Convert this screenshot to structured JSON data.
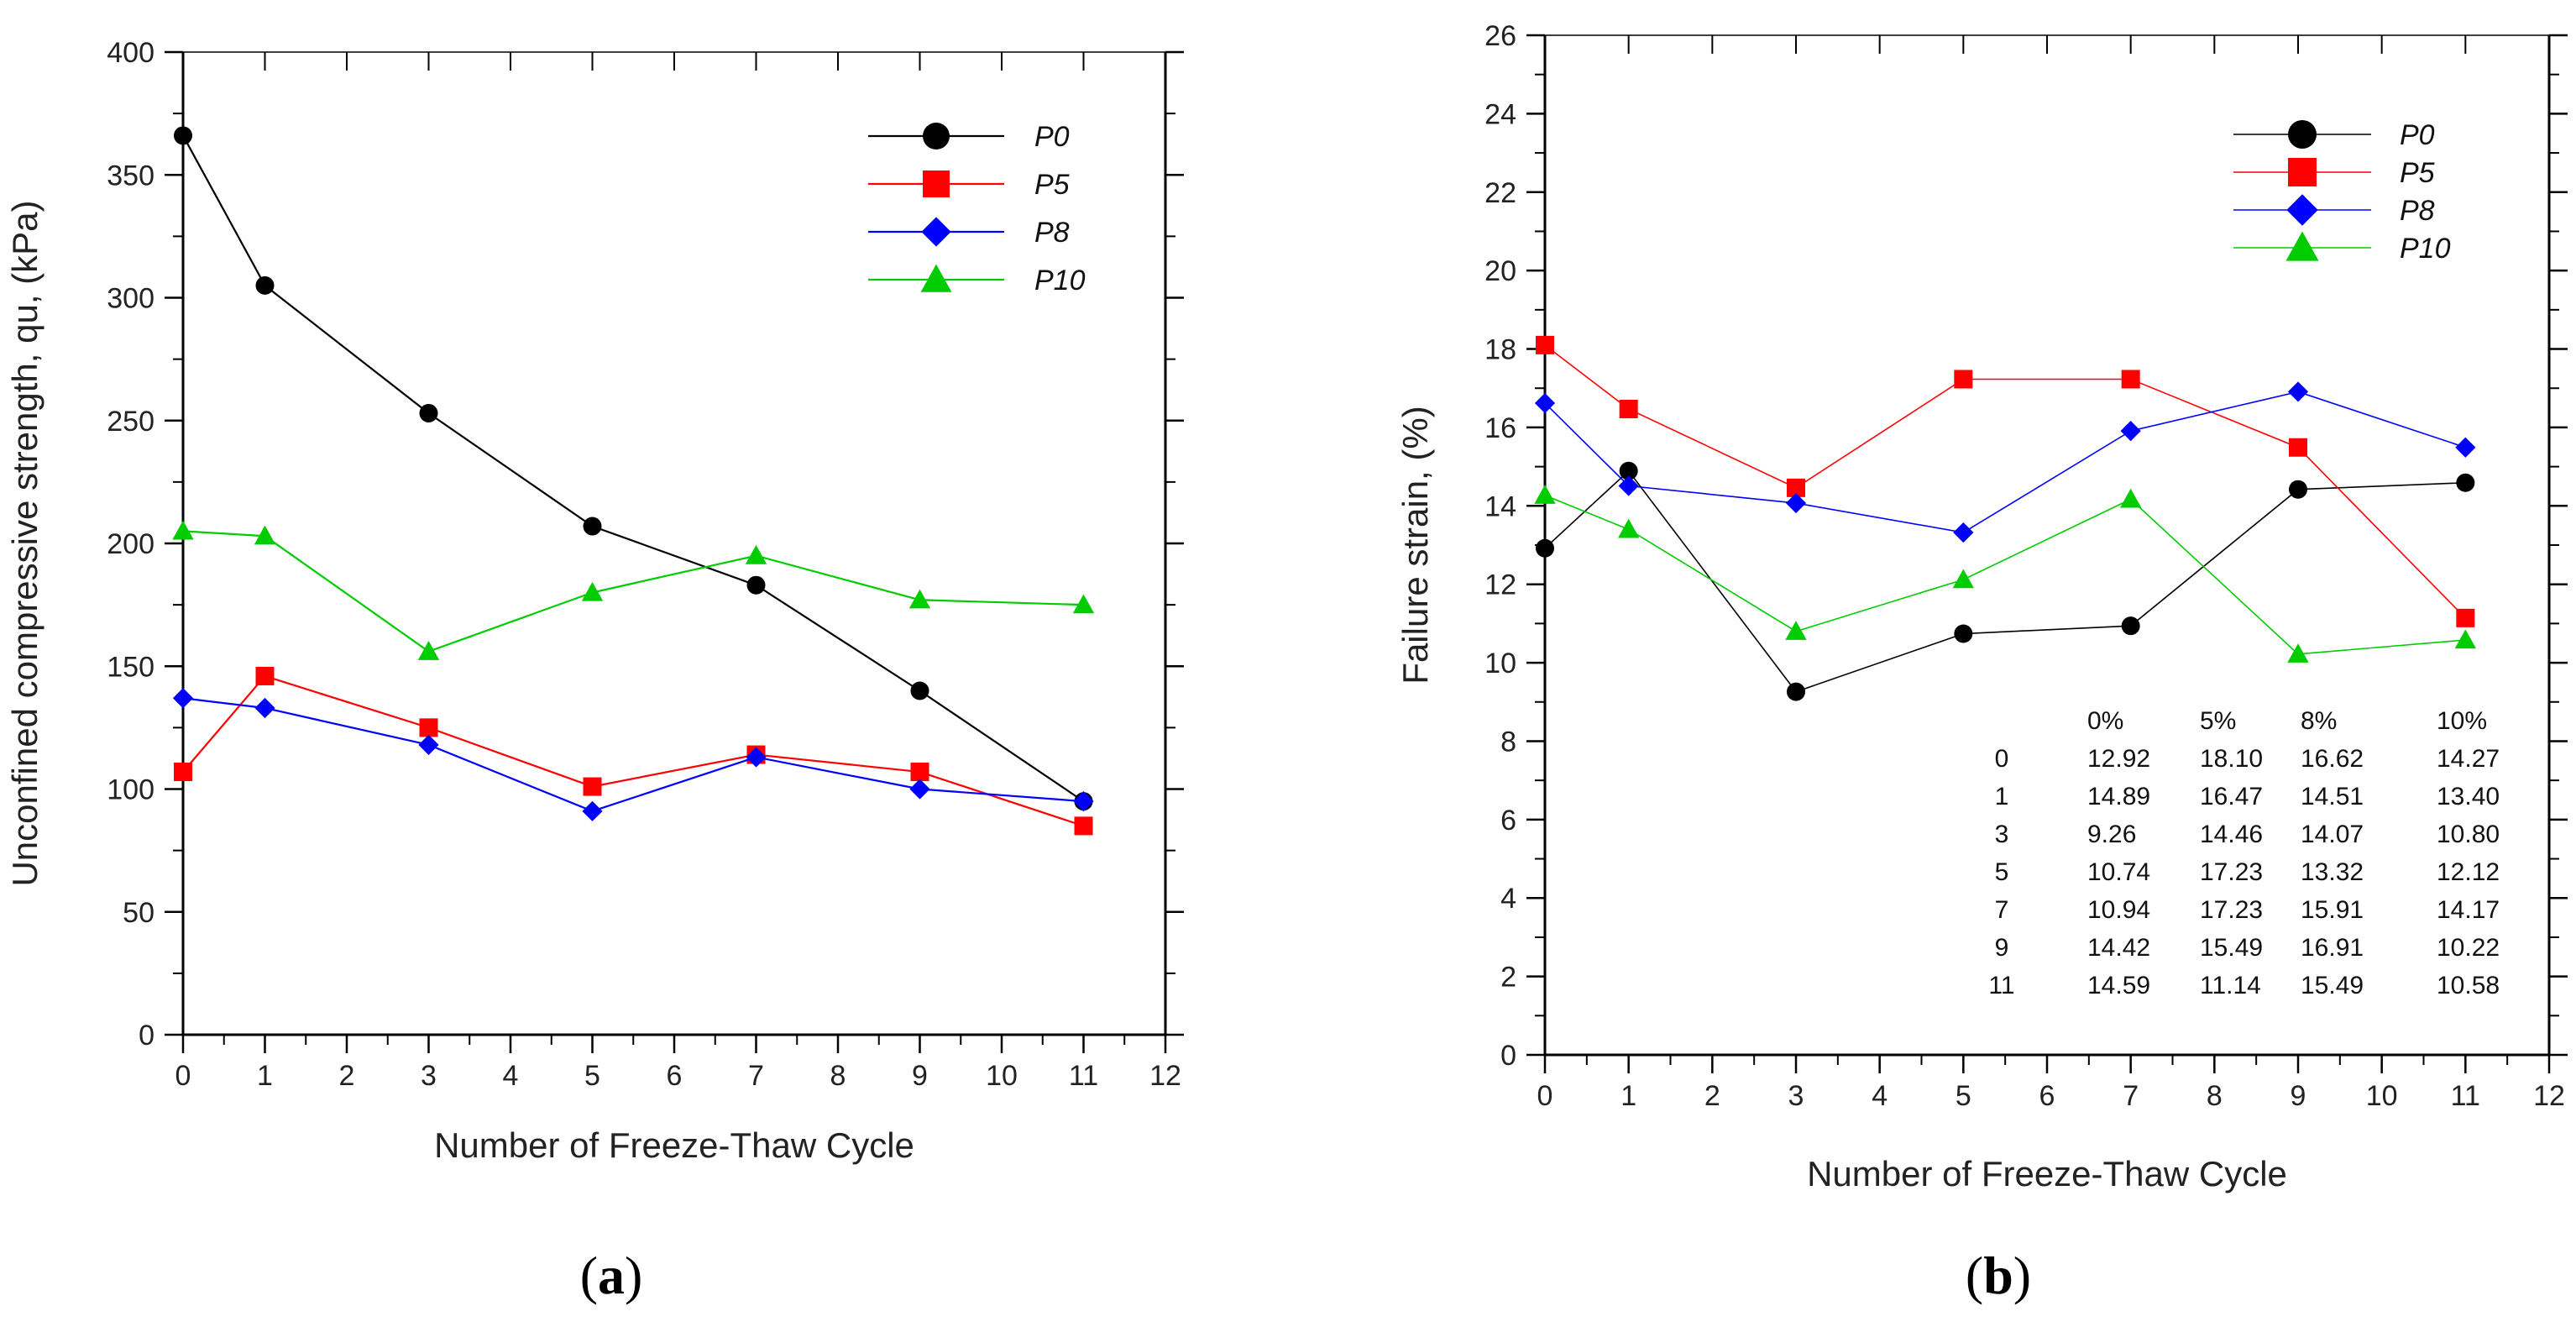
{
  "chart_data": [
    {
      "type": "line",
      "panel_label": "(a)",
      "panel_label_parts": [
        "(",
        "a",
        ")"
      ],
      "title": "",
      "xlabel": "Number of Freeze-Thaw Cycle",
      "ylabel": "Unconfined compressive strength, qu, (kPa)",
      "xlim": [
        0,
        12
      ],
      "ylim": [
        0,
        400
      ],
      "x_ticks": [
        0,
        1,
        2,
        3,
        4,
        5,
        6,
        7,
        8,
        9,
        10,
        11,
        12
      ],
      "y_ticks": [
        0,
        50,
        100,
        150,
        200,
        250,
        300,
        350,
        400
      ],
      "grid": false,
      "legend_position": "top-right",
      "x": [
        0,
        1,
        3,
        5,
        7,
        9,
        11
      ],
      "series": [
        {
          "name": "P0",
          "color": "#000000",
          "marker": "circle",
          "values": [
            366,
            305,
            253,
            207,
            183,
            140,
            95
          ]
        },
        {
          "name": "P5",
          "color": "#ff0000",
          "marker": "square",
          "values": [
            107,
            146,
            125,
            101,
            114,
            107,
            85
          ]
        },
        {
          "name": "P8",
          "color": "#0000ff",
          "marker": "diamond",
          "values": [
            137,
            133,
            118,
            91,
            113,
            100,
            95
          ]
        },
        {
          "name": "P10",
          "color": "#00cc00",
          "marker": "triangle",
          "values": [
            205,
            203,
            156,
            180,
            195,
            177,
            175
          ]
        }
      ]
    },
    {
      "type": "line",
      "panel_label": "(b)",
      "panel_label_parts": [
        "(",
        "b",
        ")"
      ],
      "title": "",
      "xlabel": "Number of Freeze-Thaw Cycle",
      "ylabel": "Failure strain, (%)",
      "xlim": [
        0,
        12
      ],
      "ylim": [
        0,
        26
      ],
      "x_ticks": [
        0,
        1,
        2,
        3,
        4,
        5,
        6,
        7,
        8,
        9,
        10,
        11,
        12
      ],
      "y_ticks": [
        0,
        2,
        4,
        6,
        8,
        10,
        12,
        14,
        16,
        18,
        20,
        22,
        24,
        26
      ],
      "grid": false,
      "legend_position": "top-right",
      "x": [
        0,
        1,
        3,
        5,
        7,
        9,
        11
      ],
      "series": [
        {
          "name": "P0",
          "color": "#000000",
          "marker": "circle",
          "values": [
            12.92,
            14.89,
            9.26,
            10.74,
            10.94,
            14.42,
            14.59
          ]
        },
        {
          "name": "P5",
          "color": "#ff0000",
          "marker": "square",
          "values": [
            18.1,
            16.47,
            14.46,
            17.23,
            17.23,
            15.49,
            11.14
          ]
        },
        {
          "name": "P8",
          "color": "#0000ff",
          "marker": "diamond",
          "values": [
            16.62,
            14.51,
            14.07,
            13.32,
            15.91,
            16.91,
            15.49
          ]
        },
        {
          "name": "P10",
          "color": "#00cc00",
          "marker": "triangle",
          "values": [
            14.27,
            13.4,
            10.8,
            12.12,
            14.17,
            10.22,
            10.58
          ]
        }
      ],
      "table": {
        "headers": [
          "",
          "0%",
          "5%",
          "8%",
          "10%"
        ],
        "rows": [
          [
            "0",
            "12.92",
            "18.10",
            "16.62",
            "14.27"
          ],
          [
            "1",
            "14.89",
            "16.47",
            "14.51",
            "13.40"
          ],
          [
            "3",
            "9.26",
            "14.46",
            "14.07",
            "10.80"
          ],
          [
            "5",
            "10.74",
            "17.23",
            "13.32",
            "12.12"
          ],
          [
            "7",
            "10.94",
            "17.23",
            "15.91",
            "14.17"
          ],
          [
            "9",
            "14.42",
            "15.49",
            "16.91",
            "10.22"
          ],
          [
            "11",
            "14.59",
            "11.14",
            "15.49",
            "10.58"
          ]
        ]
      }
    }
  ]
}
